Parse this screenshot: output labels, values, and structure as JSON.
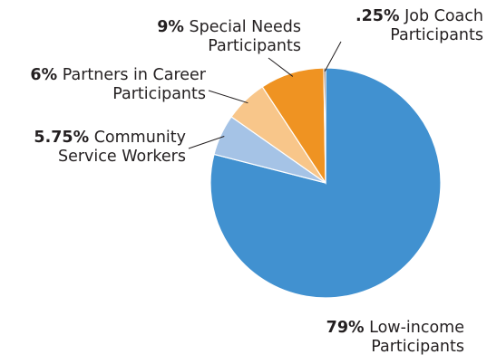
{
  "chart_data": {
    "type": "pie",
    "slices": [
      {
        "percent_label": "79%",
        "name_line1": "Low-income",
        "name_line2": "Participants",
        "value": 79,
        "color": "#4191d0"
      },
      {
        "percent_label": "5.75%",
        "name_line1": "Community",
        "name_line2": "Service Workers",
        "value": 5.75,
        "color": "#a5c3e6"
      },
      {
        "percent_label": "6%",
        "name_line1": "Partners in Career",
        "name_line2": "Participants",
        "value": 6,
        "color": "#f8c68a"
      },
      {
        "percent_label": "9%",
        "name_line1": "Special Needs",
        "name_line2": "Participants",
        "value": 9,
        "color": "#ef9322"
      },
      {
        "percent_label": ".25%",
        "name_line1": "Job Coach",
        "name_line2": "Participants",
        "value": 0.25,
        "color": "#5a2a12"
      }
    ]
  }
}
